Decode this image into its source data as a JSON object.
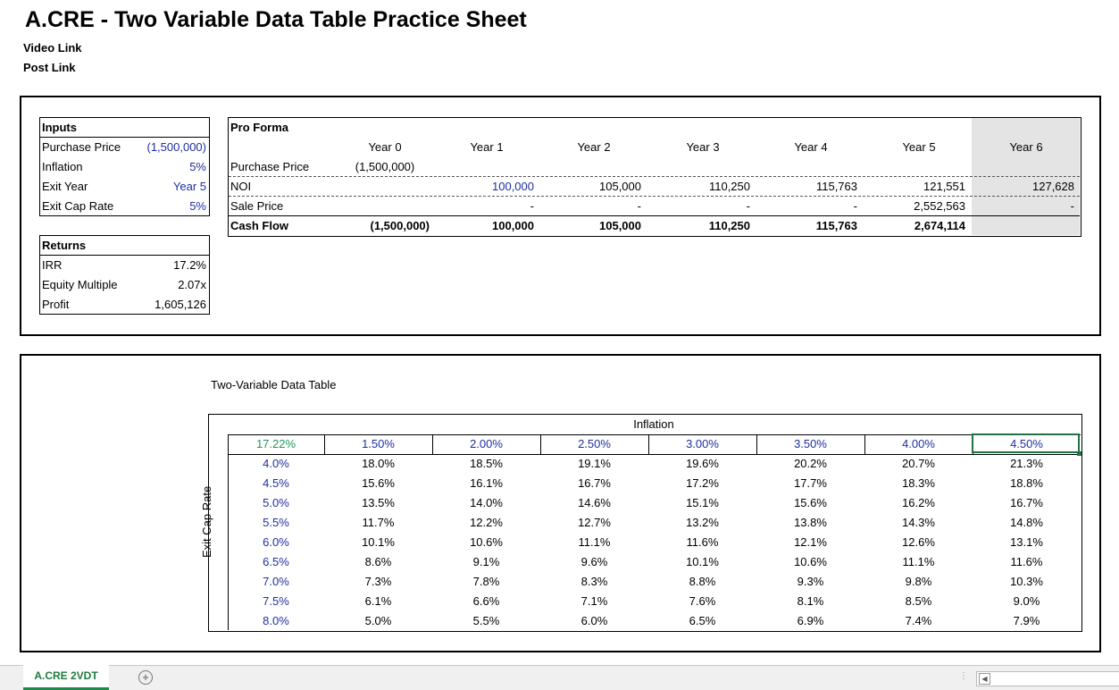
{
  "title": "A.CRE - Two Variable Data Table Practice Sheet",
  "links": {
    "video": "Video Link",
    "post": "Post Link"
  },
  "inputs": {
    "header": "Inputs",
    "rows": [
      {
        "label": "Purchase Price",
        "value": "(1,500,000)"
      },
      {
        "label": "Inflation",
        "value": "5%"
      },
      {
        "label": "Exit Year",
        "value": "Year 5"
      },
      {
        "label": "Exit Cap Rate",
        "value": "5%"
      }
    ]
  },
  "returns": {
    "header": "Returns",
    "rows": [
      {
        "label": "IRR",
        "value": "17.2%"
      },
      {
        "label": "Equity Multiple",
        "value": "2.07x"
      },
      {
        "label": "Profit",
        "value": "1,605,126"
      }
    ]
  },
  "proforma": {
    "header": "Pro Forma",
    "years": [
      "Year 0",
      "Year 1",
      "Year 2",
      "Year 3",
      "Year 4",
      "Year 5",
      "Year 6"
    ],
    "rows": [
      {
        "label": "Purchase Price",
        "values": [
          "(1,500,000)",
          "",
          "",
          "",
          "",
          "",
          ""
        ]
      },
      {
        "label": "NOI",
        "values": [
          "",
          "100,000",
          "105,000",
          "110,250",
          "115,763",
          "121,551",
          "127,628"
        ]
      },
      {
        "label": "Sale Price",
        "values": [
          "",
          "-",
          "-",
          "-",
          "-",
          "2,552,563",
          "-"
        ]
      },
      {
        "label": "Cash Flow",
        "values": [
          "(1,500,000)",
          "100,000",
          "105,000",
          "110,250",
          "115,763",
          "2,674,114",
          ""
        ]
      }
    ]
  },
  "datatable": {
    "title": "Two-Variable Data Table",
    "col_var": "Inflation",
    "row_var": "Exit Cap Rate",
    "corner": "17.22%",
    "col_headers": [
      "1.50%",
      "2.00%",
      "2.50%",
      "3.00%",
      "3.50%",
      "4.00%",
      "4.50%"
    ],
    "rows": [
      {
        "cap": "4.0%",
        "values": [
          "18.0%",
          "18.5%",
          "19.1%",
          "19.6%",
          "20.2%",
          "20.7%",
          "21.3%"
        ]
      },
      {
        "cap": "4.5%",
        "values": [
          "15.6%",
          "16.1%",
          "16.7%",
          "17.2%",
          "17.7%",
          "18.3%",
          "18.8%"
        ]
      },
      {
        "cap": "5.0%",
        "values": [
          "13.5%",
          "14.0%",
          "14.6%",
          "15.1%",
          "15.6%",
          "16.2%",
          "16.7%"
        ]
      },
      {
        "cap": "5.5%",
        "values": [
          "11.7%",
          "12.2%",
          "12.7%",
          "13.2%",
          "13.8%",
          "14.3%",
          "14.8%"
        ]
      },
      {
        "cap": "6.0%",
        "values": [
          "10.1%",
          "10.6%",
          "11.1%",
          "11.6%",
          "12.1%",
          "12.6%",
          "13.1%"
        ]
      },
      {
        "cap": "6.5%",
        "values": [
          "8.6%",
          "9.1%",
          "9.6%",
          "10.1%",
          "10.6%",
          "11.1%",
          "11.6%"
        ]
      },
      {
        "cap": "7.0%",
        "values": [
          "7.3%",
          "7.8%",
          "8.3%",
          "8.8%",
          "9.3%",
          "9.8%",
          "10.3%"
        ]
      },
      {
        "cap": "7.5%",
        "values": [
          "6.1%",
          "6.6%",
          "7.1%",
          "7.6%",
          "8.1%",
          "8.5%",
          "9.0%"
        ]
      },
      {
        "cap": "8.0%",
        "values": [
          "5.0%",
          "5.5%",
          "6.0%",
          "6.5%",
          "6.9%",
          "7.4%",
          "7.9%"
        ]
      }
    ]
  },
  "sheet_tabs": {
    "active": "A.CRE 2VDT",
    "add_icon": "plus-circle-icon"
  },
  "colors": {
    "input_blue": "#1f2fa0",
    "corner_green": "#1e9a5a",
    "tab_green": "#1e8a4a",
    "shade": "#e4e4e4"
  }
}
